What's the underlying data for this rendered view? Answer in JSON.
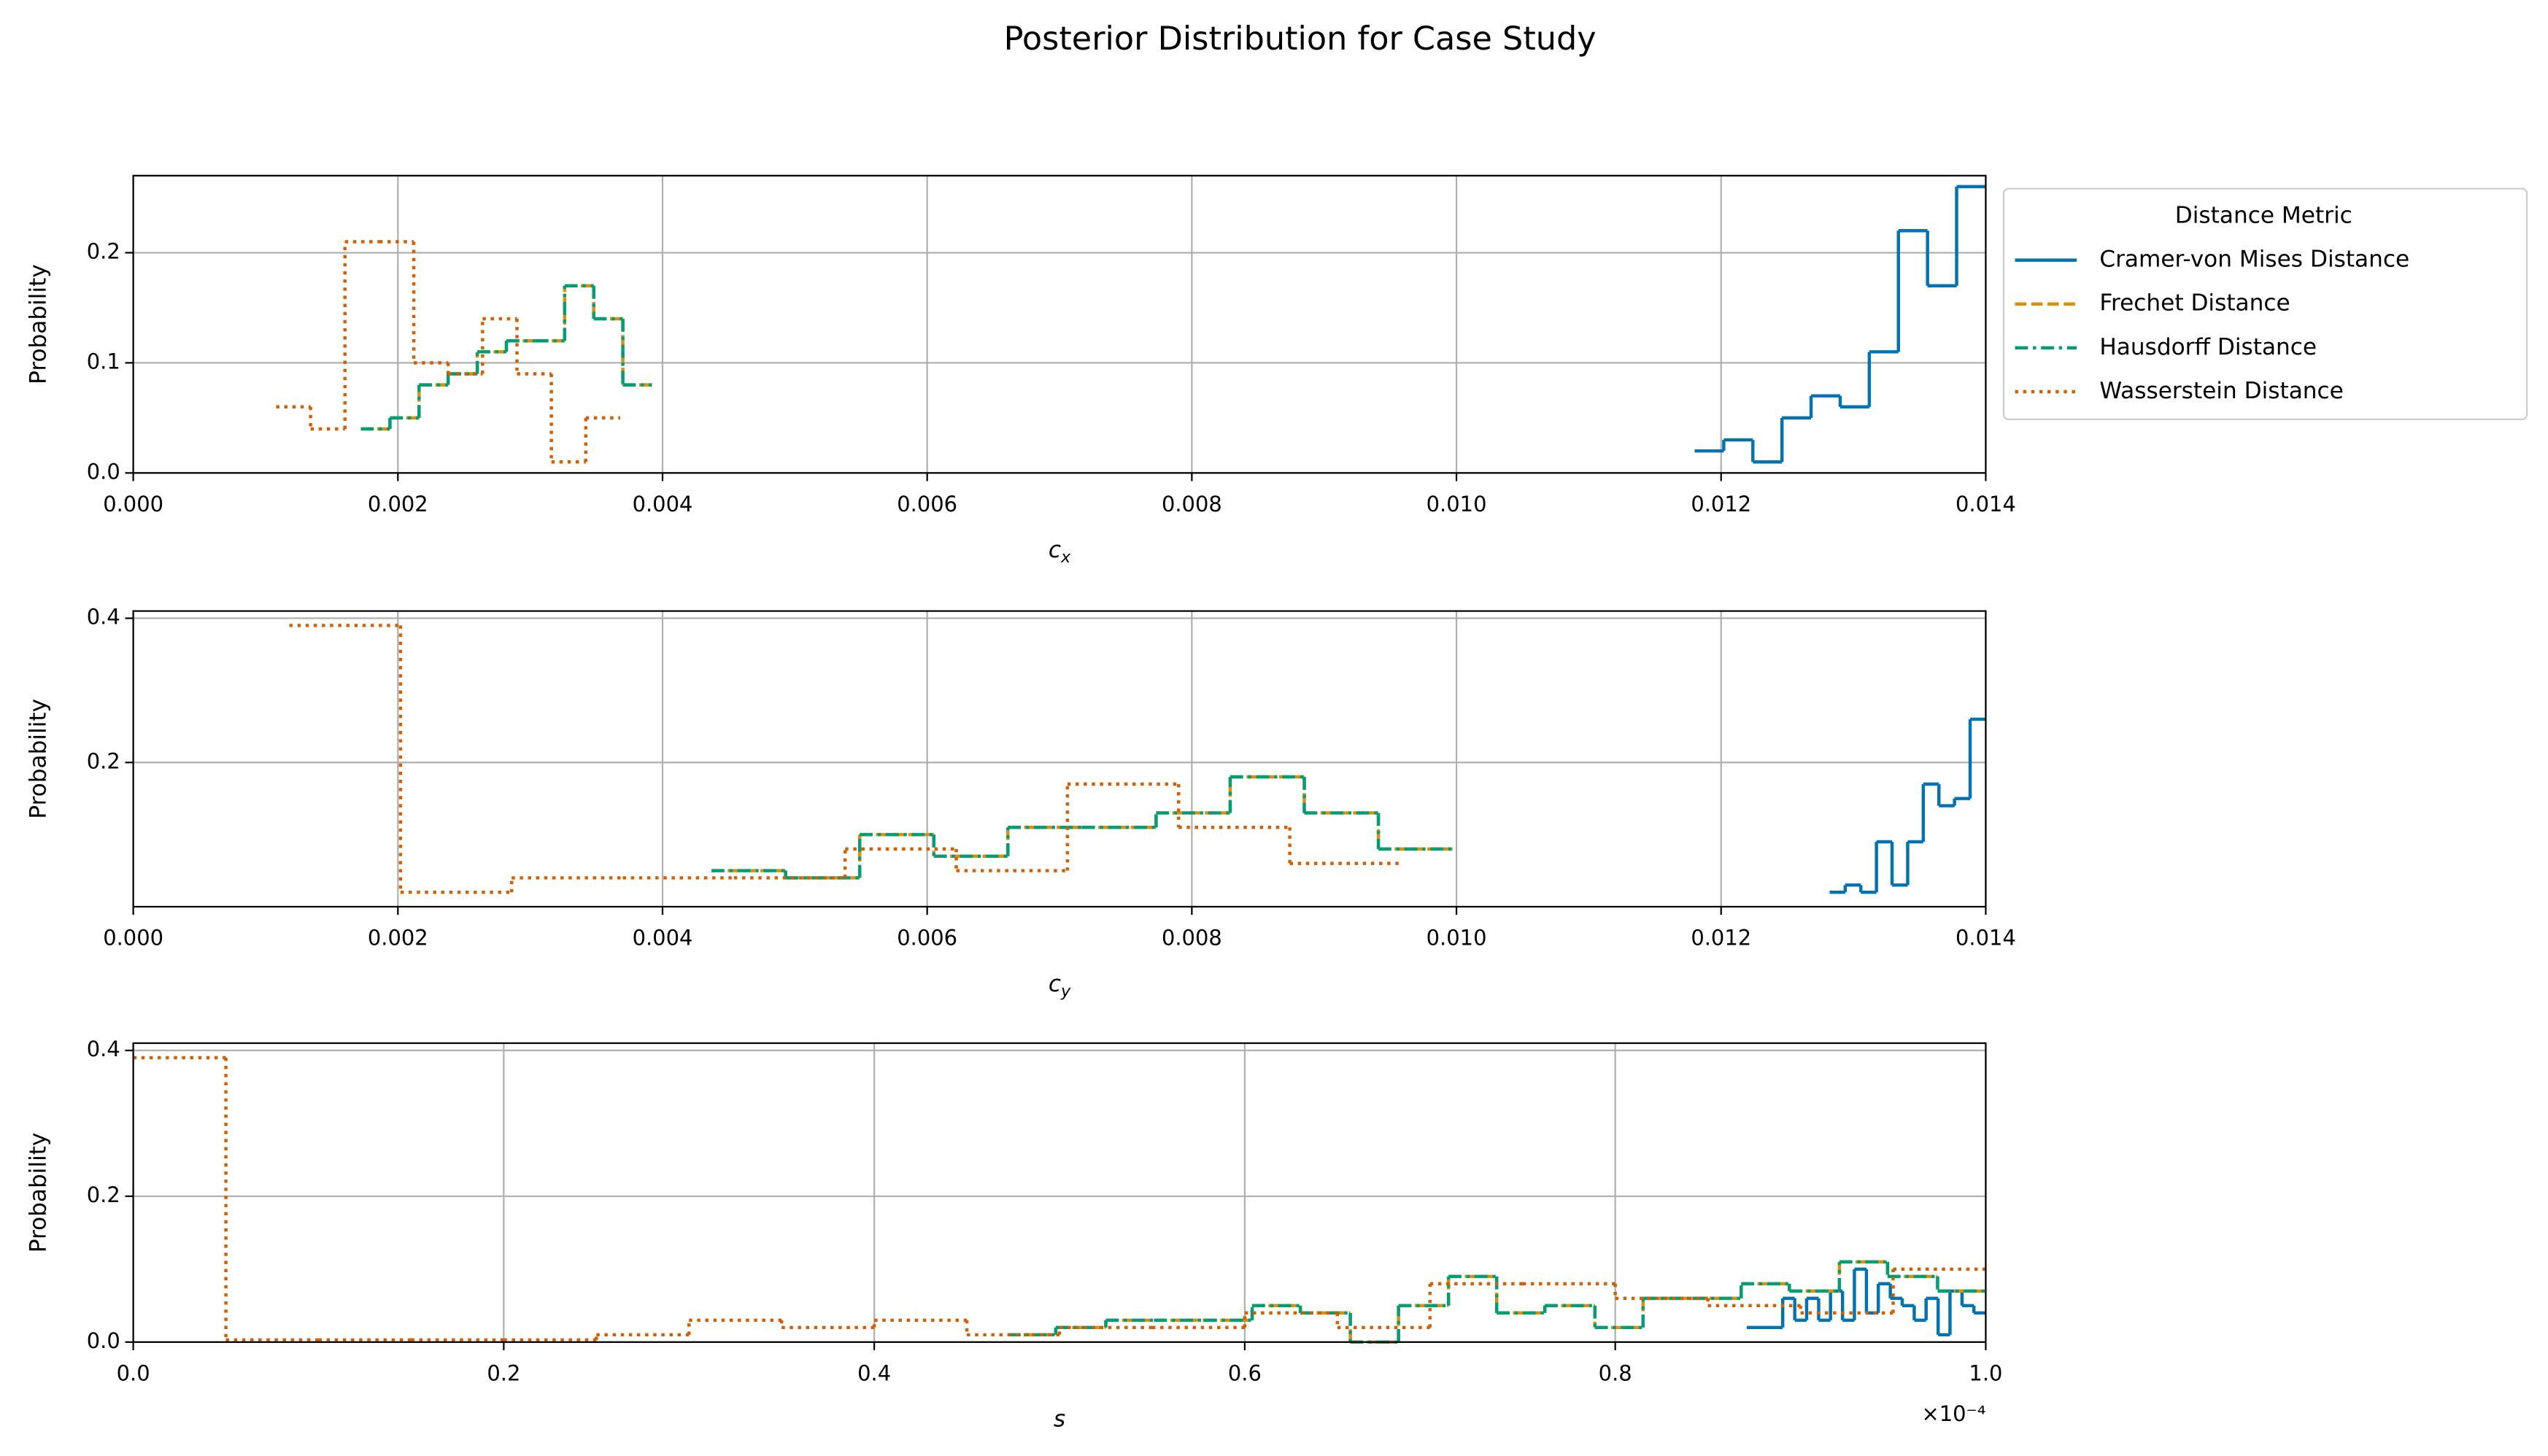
{
  "title": "Posterior Distribution for Case Study",
  "legend": {
    "title": "Distance Metric",
    "location": "outside upper right"
  },
  "chart_data": [
    {
      "type": "histogram",
      "xlabel": "c",
      "xlabel_subscript": "x",
      "ylabel": "Probability",
      "xlim": [
        0,
        0.014
      ],
      "ylim": [
        0,
        0.27
      ],
      "grid": true,
      "xticks": [
        {
          "value": 0,
          "label": "0.000"
        },
        {
          "value": 0.002,
          "label": "0.002"
        },
        {
          "value": 0.004,
          "label": "0.004"
        },
        {
          "value": 0.006,
          "label": "0.006"
        },
        {
          "value": 0.008,
          "label": "0.008"
        },
        {
          "value": 0.01,
          "label": "0.010"
        },
        {
          "value": 0.012,
          "label": "0.012"
        },
        {
          "value": 0.014,
          "label": "0.014"
        }
      ],
      "yticks": [
        {
          "value": 0,
          "label": "0.0"
        },
        {
          "value": 0.1,
          "label": "0.1"
        },
        {
          "value": 0.2,
          "label": "0.2"
        }
      ],
      "series": [
        {
          "name": "Cramer-von Mises Distance",
          "color": "#0173b2",
          "linestyle": "solid",
          "bins": [
            0.0118,
            0.01202,
            0.01224,
            0.01246,
            0.01268,
            0.0129,
            0.01312,
            0.01334,
            0.01356,
            0.01378,
            0.014
          ],
          "values": [
            0.02,
            0.03,
            0.01,
            0.05,
            0.07,
            0.06,
            0.11,
            0.22,
            0.17,
            0.26
          ]
        },
        {
          "name": "Frechet Distance",
          "color": "#de8f05",
          "linestyle": "dashed",
          "bins": [
            0.00172,
            0.00194,
            0.00216,
            0.00238,
            0.0026,
            0.00282,
            0.00304,
            0.00326,
            0.00348,
            0.0037,
            0.00392
          ],
          "values": [
            0.04,
            0.05,
            0.08,
            0.09,
            0.11,
            0.12,
            0.12,
            0.17,
            0.14,
            0.08
          ]
        },
        {
          "name": "Hausdorff Distance",
          "color": "#029e73",
          "linestyle": "dashdot",
          "bins": [
            0.00172,
            0.00194,
            0.00216,
            0.00238,
            0.0026,
            0.00282,
            0.00304,
            0.00326,
            0.00348,
            0.0037,
            0.00392
          ],
          "values": [
            0.04,
            0.05,
            0.08,
            0.09,
            0.11,
            0.12,
            0.12,
            0.17,
            0.14,
            0.08
          ]
        },
        {
          "name": "Wasserstein Distance",
          "color": "#d55e00",
          "linestyle": "dotted",
          "bins": [
            0.00108,
            0.00134,
            0.0016,
            0.00186,
            0.00212,
            0.00238,
            0.00264,
            0.0029,
            0.00316,
            0.00342,
            0.00368
          ],
          "values": [
            0.06,
            0.04,
            0.21,
            0.21,
            0.1,
            0.09,
            0.14,
            0.09,
            0.01,
            0.05
          ]
        }
      ]
    },
    {
      "type": "histogram",
      "xlabel": "c",
      "xlabel_subscript": "y",
      "ylabel": "Probability",
      "xlim": [
        0,
        0.014
      ],
      "ylim": [
        0,
        0.41
      ],
      "grid": true,
      "xticks": [
        {
          "value": 0,
          "label": "0.000"
        },
        {
          "value": 0.002,
          "label": "0.002"
        },
        {
          "value": 0.004,
          "label": "0.004"
        },
        {
          "value": 0.006,
          "label": "0.006"
        },
        {
          "value": 0.008,
          "label": "0.008"
        },
        {
          "value": 0.01,
          "label": "0.010"
        },
        {
          "value": 0.012,
          "label": "0.012"
        },
        {
          "value": 0.014,
          "label": "0.014"
        }
      ],
      "yticks": [
        {
          "value": 0.2,
          "label": "0.2"
        },
        {
          "value": 0.4,
          "label": "0.4"
        }
      ],
      "series": [
        {
          "name": "Cramer-von Mises Distance",
          "color": "#0173b2",
          "linestyle": "solid",
          "bins": [
            0.01282,
            0.012938,
            0.013056,
            0.013174,
            0.013292,
            0.01341,
            0.013528,
            0.013646,
            0.013764,
            0.013882,
            0.014
          ],
          "values": [
            0.02,
            0.03,
            0.02,
            0.09,
            0.03,
            0.09,
            0.17,
            0.14,
            0.15,
            0.26
          ]
        },
        {
          "name": "Frechet Distance",
          "color": "#de8f05",
          "linestyle": "dashed",
          "bins": [
            0.00437,
            0.00493,
            0.00549,
            0.00605,
            0.00661,
            0.00717,
            0.00773,
            0.00829,
            0.00885,
            0.00941,
            0.00997
          ],
          "values": [
            0.05,
            0.04,
            0.1,
            0.07,
            0.11,
            0.11,
            0.13,
            0.18,
            0.13,
            0.08
          ]
        },
        {
          "name": "Hausdorff Distance",
          "color": "#029e73",
          "linestyle": "dashdot",
          "bins": [
            0.00437,
            0.00493,
            0.00549,
            0.00605,
            0.00661,
            0.00717,
            0.00773,
            0.00829,
            0.00885,
            0.00941,
            0.00997
          ],
          "values": [
            0.05,
            0.04,
            0.1,
            0.07,
            0.11,
            0.11,
            0.13,
            0.18,
            0.13,
            0.08
          ]
        },
        {
          "name": "Wasserstein Distance",
          "color": "#d55e00",
          "linestyle": "dotted",
          "bins": [
            0.00118,
            0.00202,
            0.00286,
            0.0037,
            0.00454,
            0.00538,
            0.00622,
            0.00706,
            0.0079,
            0.00874,
            0.00958
          ],
          "values": [
            0.39,
            0.02,
            0.04,
            0.04,
            0.04,
            0.08,
            0.05,
            0.17,
            0.11,
            0.06
          ]
        }
      ]
    },
    {
      "type": "histogram",
      "xlabel": "s",
      "ylabel": "Probability",
      "x_offset_label": "×10⁻⁴",
      "xlim": [
        0,
        0.0001
      ],
      "ylim": [
        0,
        0.41
      ],
      "grid": true,
      "xticks": [
        {
          "value": 0,
          "label": "0.0"
        },
        {
          "value": 2e-05,
          "label": "0.2"
        },
        {
          "value": 4e-05,
          "label": "0.4"
        },
        {
          "value": 6e-05,
          "label": "0.6"
        },
        {
          "value": 8e-05,
          "label": "0.8"
        },
        {
          "value": 0.0001,
          "label": "1.0"
        }
      ],
      "yticks": [
        {
          "value": 0,
          "label": "0.0"
        },
        {
          "value": 0.2,
          "label": "0.2"
        },
        {
          "value": 0.4,
          "label": "0.4"
        }
      ],
      "series": [
        {
          "name": "Cramer-von Mises Distance",
          "color": "#0173b2",
          "linestyle": "solid",
          "bins": [
            8.71e-05,
            8.775e-05,
            8.84e-05,
            8.904e-05,
            8.969e-05,
            9.033e-05,
            9.098e-05,
            9.162e-05,
            9.227e-05,
            9.291e-05,
            9.356e-05,
            9.42e-05,
            9.485e-05,
            9.549e-05,
            9.614e-05,
            9.678e-05,
            9.743e-05,
            9.807e-05,
            9.872e-05,
            9.936e-05,
            0.0001
          ],
          "values": [
            0.02,
            0.02,
            0.02,
            0.06,
            0.03,
            0.06,
            0.03,
            0.07,
            0.03,
            0.1,
            0.04,
            0.08,
            0.06,
            0.05,
            0.03,
            0.06,
            0.01,
            0.07,
            0.05,
            0.04
          ]
        },
        {
          "name": "Frechet Distance",
          "color": "#de8f05",
          "linestyle": "dashed",
          "bins": [
            4.72e-05,
            4.98e-05,
            5.25e-05,
            5.51e-05,
            5.78e-05,
            6.04e-05,
            6.3e-05,
            6.57e-05,
            6.83e-05,
            7.1e-05,
            7.36e-05,
            7.62e-05,
            7.89e-05,
            8.15e-05,
            8.42e-05,
            8.68e-05,
            8.94e-05,
            9.21e-05,
            9.47e-05,
            9.74e-05,
            0.0001
          ],
          "values": [
            0.01,
            0.02,
            0.03,
            0.03,
            0.03,
            0.05,
            0.04,
            0.0,
            0.05,
            0.09,
            0.04,
            0.05,
            0.02,
            0.06,
            0.06,
            0.08,
            0.07,
            0.11,
            0.09,
            0.07
          ]
        },
        {
          "name": "Hausdorff Distance",
          "color": "#029e73",
          "linestyle": "dashdot",
          "bins": [
            4.72e-05,
            4.98e-05,
            5.25e-05,
            5.51e-05,
            5.78e-05,
            6.04e-05,
            6.3e-05,
            6.57e-05,
            6.83e-05,
            7.1e-05,
            7.36e-05,
            7.62e-05,
            7.89e-05,
            8.15e-05,
            8.42e-05,
            8.68e-05,
            8.94e-05,
            9.21e-05,
            9.47e-05,
            9.74e-05,
            0.0001
          ],
          "values": [
            0.01,
            0.02,
            0.03,
            0.03,
            0.03,
            0.05,
            0.04,
            0.0,
            0.05,
            0.09,
            0.04,
            0.05,
            0.02,
            0.06,
            0.06,
            0.08,
            0.07,
            0.11,
            0.09,
            0.07
          ]
        },
        {
          "name": "Wasserstein Distance",
          "color": "#d55e00",
          "linestyle": "dotted",
          "bins": [
            0,
            5e-06,
            1e-05,
            1.5e-05,
            2e-05,
            2.5e-05,
            3e-05,
            3.5e-05,
            4e-05,
            4.5e-05,
            5e-05,
            5.5e-05,
            6e-05,
            6.5e-05,
            7e-05,
            7.5e-05,
            8e-05,
            8.5e-05,
            9e-05,
            9.5e-05,
            0.0001
          ],
          "values": [
            0.39,
            0.003,
            0.003,
            0.003,
            0.003,
            0.01,
            0.03,
            0.02,
            0.03,
            0.01,
            0.02,
            0.02,
            0.04,
            0.02,
            0.08,
            0.08,
            0.06,
            0.05,
            0.04,
            0.1
          ]
        }
      ]
    }
  ]
}
